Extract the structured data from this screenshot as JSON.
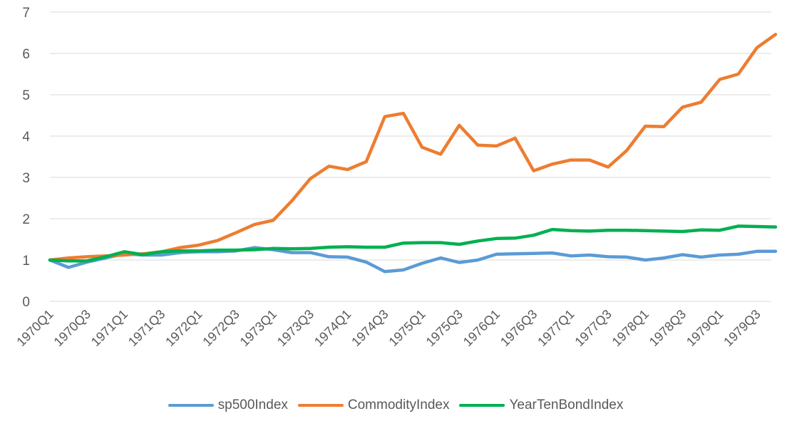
{
  "chart_data": {
    "type": "line",
    "title": "",
    "xlabel": "",
    "ylabel": "",
    "ylim": [
      0,
      7
    ],
    "yticks": [
      "0",
      "1",
      "2",
      "3",
      "4",
      "5",
      "6",
      "7"
    ],
    "grid": true,
    "legend_position": "bottom",
    "categories": [
      "1970Q1",
      "1970Q2",
      "1970Q3",
      "1970Q4",
      "1971Q1",
      "1971Q2",
      "1971Q3",
      "1971Q4",
      "1972Q1",
      "1972Q2",
      "1972Q3",
      "1972Q4",
      "1973Q1",
      "1973Q2",
      "1973Q3",
      "1973Q4",
      "1974Q1",
      "1974Q2",
      "1974Q3",
      "1974Q4",
      "1975Q1",
      "1975Q2",
      "1975Q3",
      "1975Q4",
      "1976Q1",
      "1976Q2",
      "1976Q3",
      "1976Q4",
      "1977Q1",
      "1977Q2",
      "1977Q3",
      "1977Q4",
      "1978Q1",
      "1978Q2",
      "1978Q3",
      "1978Q4",
      "1979Q1",
      "1979Q2",
      "1979Q3",
      "1979Q4"
    ],
    "x_tick_labels": [
      "1970Q1",
      "1970Q3",
      "1971Q1",
      "1971Q3",
      "1972Q1",
      "1972Q3",
      "1973Q1",
      "1973Q3",
      "1974Q1",
      "1974Q3",
      "1975Q1",
      "1975Q3",
      "1976Q1",
      "1976Q3",
      "1977Q1",
      "1977Q3",
      "1978Q1",
      "1978Q3",
      "1979Q1",
      "1979Q3"
    ],
    "series": [
      {
        "name": "sp500Index",
        "color": "#5b9bd5",
        "values": [
          1.0,
          0.82,
          0.95,
          1.05,
          1.15,
          1.12,
          1.12,
          1.18,
          1.2,
          1.2,
          1.22,
          1.3,
          1.25,
          1.18,
          1.18,
          1.08,
          1.07,
          0.95,
          0.72,
          0.76,
          0.92,
          1.05,
          0.94,
          1.0,
          1.14,
          1.15,
          1.16,
          1.17,
          1.1,
          1.12,
          1.08,
          1.07,
          1.0,
          1.05,
          1.13,
          1.07,
          1.12,
          1.14,
          1.21,
          1.21
        ]
      },
      {
        "name": "CommodityIndex",
        "color": "#ed7d31",
        "values": [
          1.0,
          1.05,
          1.08,
          1.1,
          1.12,
          1.15,
          1.2,
          1.3,
          1.36,
          1.47,
          1.66,
          1.86,
          1.96,
          2.43,
          2.97,
          3.27,
          3.19,
          3.38,
          4.47,
          4.55,
          3.73,
          3.56,
          4.26,
          3.78,
          3.76,
          3.95,
          3.16,
          3.32,
          3.42,
          3.42,
          3.25,
          3.65,
          4.24,
          4.23,
          4.7,
          4.82,
          5.37,
          5.5,
          6.14,
          6.46
        ]
      },
      {
        "name": "YearTenBondIndex",
        "color": "#00b050",
        "values": [
          1.0,
          0.98,
          0.98,
          1.08,
          1.2,
          1.13,
          1.2,
          1.22,
          1.22,
          1.24,
          1.24,
          1.25,
          1.28,
          1.27,
          1.28,
          1.31,
          1.32,
          1.31,
          1.31,
          1.41,
          1.42,
          1.42,
          1.38,
          1.46,
          1.52,
          1.53,
          1.6,
          1.74,
          1.71,
          1.7,
          1.72,
          1.72,
          1.71,
          1.7,
          1.69,
          1.73,
          1.72,
          1.82,
          1.81,
          1.8
        ]
      }
    ]
  }
}
